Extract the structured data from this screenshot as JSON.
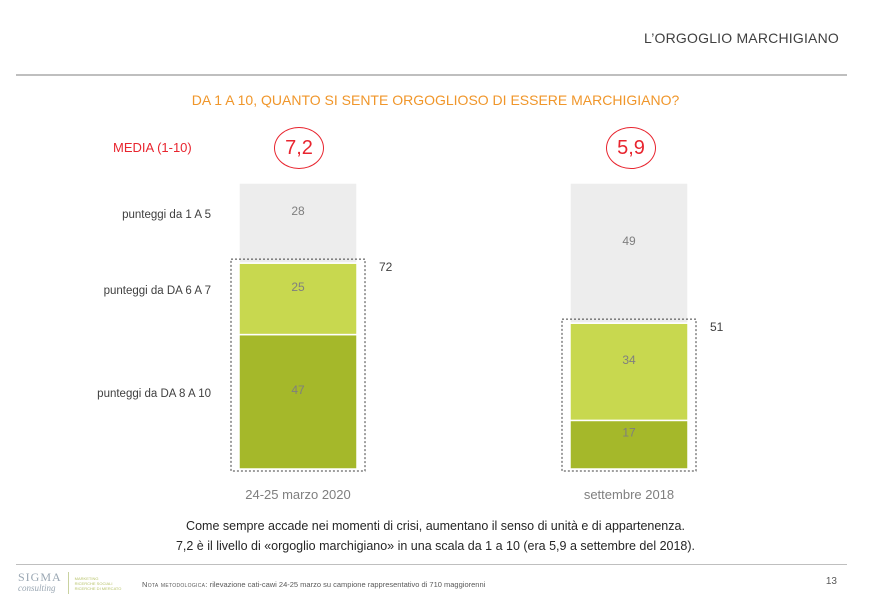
{
  "header": {
    "title": "L’ORGOGLIO MARCHIGIANO"
  },
  "question": "DA 1 A 10, QUANTO SI SENTE ORGOGLIOSO DI ESSERE MARCHIGIANO?",
  "media": {
    "label": "MEDIA (1-10)",
    "values": [
      "7,2",
      "5,9"
    ]
  },
  "chart_data": {
    "type": "bar",
    "stacked": true,
    "categories": [
      "24-25 marzo 2020",
      "settembre 2018"
    ],
    "series": [
      {
        "name": "punteggi da DA 8 A 10",
        "values": [
          47,
          17
        ],
        "color": "#a5b82a"
      },
      {
        "name": "punteggi da DA 6 A 7",
        "values": [
          25,
          34
        ],
        "color": "#c8d84f"
      },
      {
        "name": "punteggi da 1 A 5",
        "values": [
          28,
          49
        ],
        "color": "#ededed"
      }
    ],
    "bracket_totals": [
      "72",
      "51"
    ],
    "ylim": [
      0,
      100
    ],
    "legend": "left"
  },
  "caption": {
    "line1": "Come sempre accade nei momenti di crisi, aumentano il senso di unità e di appartenenza.",
    "line2": "7,2 è il livello di «orgoglio marchigiano» in una scala da 1 a 10 (era 5,9 a settembre del 2018)."
  },
  "footer": {
    "logo_main": "SIGMA",
    "logo_sub": "consulting",
    "logo_tagline": [
      "MARKETING",
      "RICERCHE SOCIALI",
      "RICERCHE DI MERCATO"
    ],
    "note_label": "Nota metodologica:",
    "note_text": " rilevazione cati-cawi 24-25 marzo su campione rappresentativo di 710 maggiorenni",
    "page_number": "13"
  }
}
